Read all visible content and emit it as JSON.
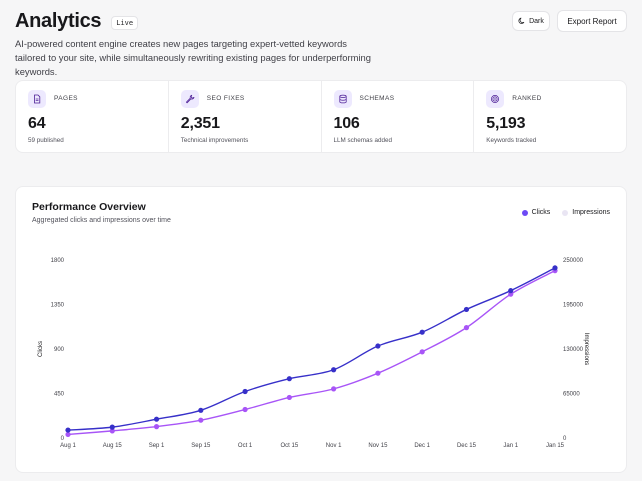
{
  "header": {
    "title": "Analytics",
    "badge": "Live",
    "description": "AI-powered content engine creates new pages targeting expert-vetted keywords tailored to your site, while simultaneously rewriting existing pages for underperforming keywords.",
    "dark_label": "Dark",
    "export_label": "Export Report"
  },
  "stats": [
    {
      "icon": "document-icon",
      "label": "PAGES",
      "value": "64",
      "sub": "59 published"
    },
    {
      "icon": "wrench-icon",
      "label": "SEO FIXES",
      "value": "2,351",
      "sub": "Technical improvements"
    },
    {
      "icon": "database-icon",
      "label": "SCHEMAS",
      "value": "106",
      "sub": "LLM schemas added"
    },
    {
      "icon": "target-icon",
      "label": "RANKED",
      "value": "5,193",
      "sub": "Keywords tracked"
    }
  ],
  "chart_card": {
    "title": "Performance Overview",
    "subtitle": "Aggregated clicks and impressions over time"
  },
  "colors": {
    "clicks": "#3730c9",
    "impressions": "#a855f7",
    "accent_bg": "#ede9fe"
  },
  "chart_data": {
    "type": "line",
    "categories": [
      "Aug 1",
      "Aug 15",
      "Sep 1",
      "Sep 15",
      "Oct 1",
      "Oct 15",
      "Nov 1",
      "Nov 15",
      "Dec 1",
      "Dec 15",
      "Jan 1",
      "Jan 15"
    ],
    "ylabel": "Clicks",
    "y2label": "Impressions",
    "ylim": [
      0,
      1800
    ],
    "y2lim": [
      0,
      250000
    ],
    "y_ticks": [
      "0",
      "450",
      "900",
      "1350",
      "1800"
    ],
    "y2_ticks": [
      "0",
      "65000",
      "130000",
      "195000",
      "250000"
    ],
    "legend_position": "top-right",
    "grid": false,
    "series": [
      {
        "name": "Clicks",
        "axis": "left",
        "values": [
          80,
          110,
          190,
          280,
          470,
          600,
          690,
          930,
          1070,
          1300,
          1490,
          1720
        ]
      },
      {
        "name": "Impressions",
        "axis": "right",
        "values": [
          5000,
          10000,
          16000,
          25000,
          40000,
          57000,
          69000,
          91000,
          121000,
          155000,
          202000,
          235000
        ]
      }
    ]
  }
}
